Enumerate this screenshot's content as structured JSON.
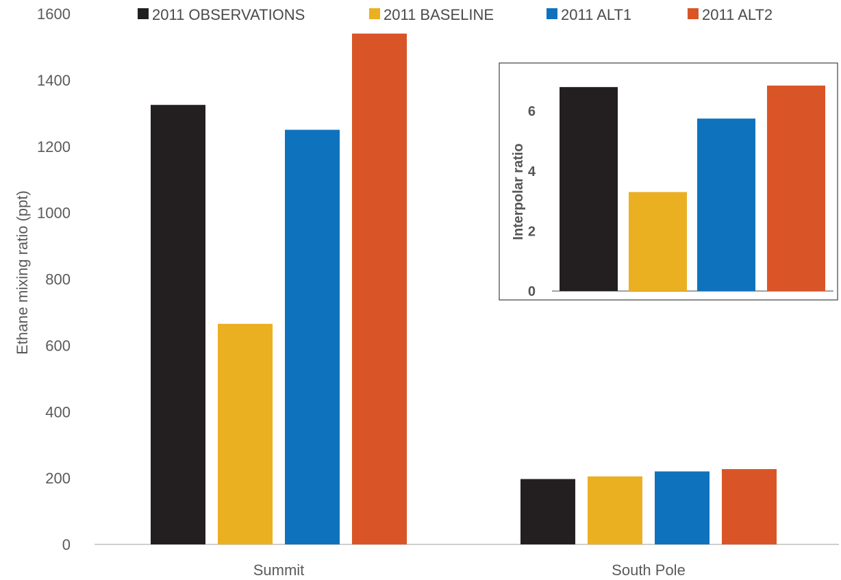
{
  "chart_data": [
    {
      "type": "bar",
      "categories": [
        "Summit",
        "South Pole"
      ],
      "series": [
        {
          "name": "2011 OBSERVATIONS",
          "color": "#231f20",
          "values": [
            1325,
            197
          ]
        },
        {
          "name": "2011 BASELINE",
          "color": "#ebb022",
          "values": [
            665,
            205
          ]
        },
        {
          "name": "2011 ALT1",
          "color": "#0f72bd",
          "values": [
            1250,
            220
          ]
        },
        {
          "name": "2011 ALT2",
          "color": "#d95527",
          "values": [
            1540,
            227
          ]
        }
      ],
      "ylabel": "Ethane mixing ratio (ppt)",
      "ylim": [
        0,
        1600
      ],
      "yticks": [
        "0",
        "200",
        "400",
        "600",
        "800",
        "1000",
        "1200",
        "1400",
        "1600"
      ],
      "legend": "top",
      "grid": false
    },
    {
      "type": "bar",
      "inset": true,
      "series": [
        {
          "name": "2011 OBSERVATIONS",
          "color": "#231f20",
          "values": [
            6.8
          ]
        },
        {
          "name": "2011 BASELINE",
          "color": "#ebb022",
          "values": [
            3.3
          ]
        },
        {
          "name": "2011 ALT1",
          "color": "#0f72bd",
          "values": [
            5.75
          ]
        },
        {
          "name": "2011 ALT2",
          "color": "#d95527",
          "values": [
            6.85
          ]
        }
      ],
      "ylabel": "Interpolar ratio",
      "ylim": [
        0,
        7
      ],
      "yticks": [
        "0",
        "2",
        "4",
        "6"
      ],
      "grid": false
    }
  ]
}
